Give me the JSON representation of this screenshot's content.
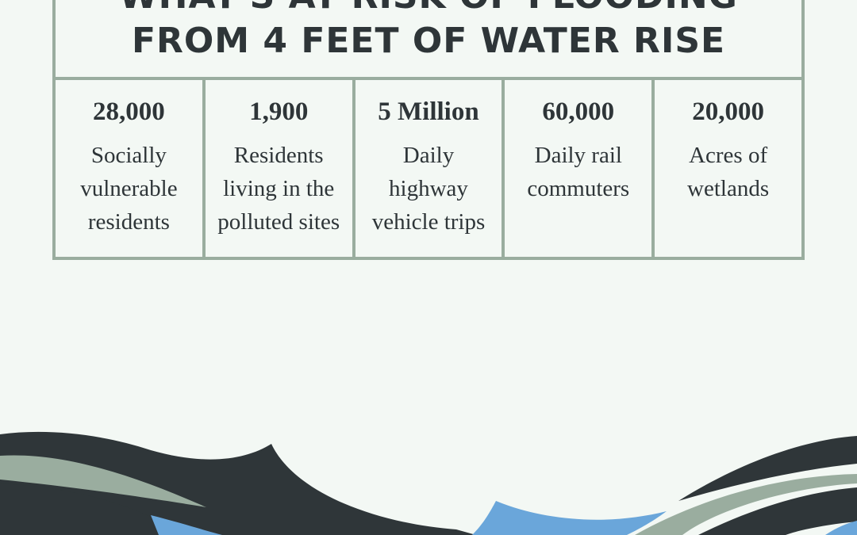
{
  "header": {
    "title_lines": [
      "WHAT'S AT RISK OF FLOODING",
      "FROM 4 FEET OF WATER RISE"
    ]
  },
  "stats": [
    {
      "number": "28,000",
      "label": "Socially vulnerable residents"
    },
    {
      "number": "1,900",
      "label": "Residents living in the polluted sites"
    },
    {
      "number": "5 Million",
      "label": "Daily highway vehicle trips"
    },
    {
      "number": "60,000",
      "label": "Daily rail commuters"
    },
    {
      "number": "20,000",
      "label": "Acres of wetlands"
    }
  ]
}
